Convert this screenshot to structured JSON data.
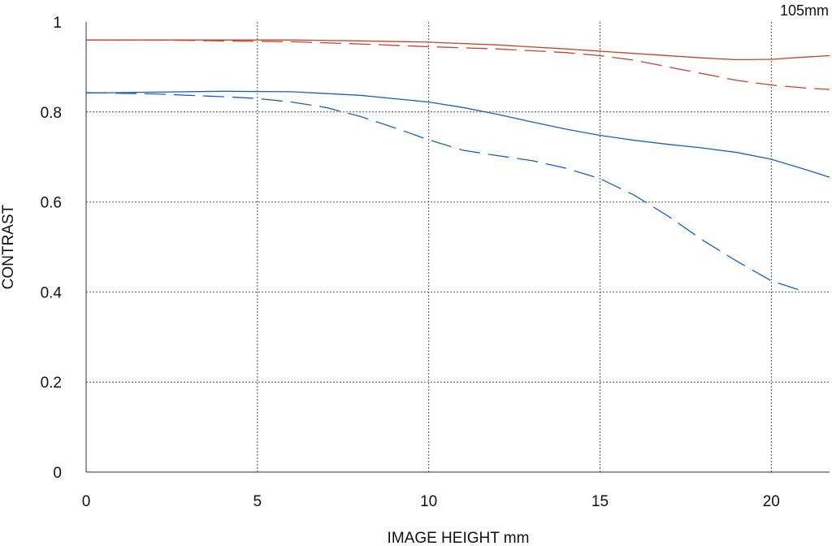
{
  "chart_data": {
    "type": "line",
    "title": "105mm",
    "xlabel": "IMAGE HEIGHT  mm",
    "ylabel": "CONTRAST",
    "xlim": [
      0,
      21.7
    ],
    "ylim": [
      0,
      1
    ],
    "xticks": [
      0,
      5,
      10,
      15,
      20
    ],
    "xtick_labels": [
      "0",
      "5",
      "10",
      "15",
      "20"
    ],
    "yticks": [
      0,
      0.2,
      0.4,
      0.6,
      0.8,
      1
    ],
    "ytick_labels": [
      "0",
      "0.2",
      "0.4",
      "0.6",
      "0.8",
      "1"
    ],
    "grid": true,
    "series": [
      {
        "color": "#c8432a",
        "style": "solid",
        "x": [
          0,
          2,
          4,
          6,
          8,
          10,
          12,
          14,
          16,
          18,
          19,
          20,
          21,
          21.7
        ],
        "y": [
          0.96,
          0.96,
          0.96,
          0.96,
          0.958,
          0.955,
          0.949,
          0.94,
          0.93,
          0.92,
          0.916,
          0.917,
          0.922,
          0.925
        ]
      },
      {
        "color": "#c8432a",
        "style": "dashed",
        "x": [
          0,
          2,
          4,
          6,
          8,
          10,
          12,
          14,
          15,
          16,
          17,
          18,
          19,
          20,
          21,
          21.7
        ],
        "y": [
          0.96,
          0.96,
          0.958,
          0.956,
          0.951,
          0.945,
          0.94,
          0.932,
          0.925,
          0.915,
          0.9,
          0.885,
          0.87,
          0.86,
          0.853,
          0.85
        ]
      },
      {
        "color": "#1a5fc8",
        "style": "solid",
        "x": [
          0,
          2,
          4,
          6,
          8,
          10,
          11,
          12,
          13,
          14,
          15,
          16,
          17,
          18,
          19,
          20,
          21,
          21.7
        ],
        "y": [
          0.842,
          0.844,
          0.846,
          0.845,
          0.837,
          0.822,
          0.81,
          0.795,
          0.778,
          0.762,
          0.748,
          0.737,
          0.728,
          0.72,
          0.71,
          0.695,
          0.672,
          0.655
        ]
      },
      {
        "color": "#1a5fc8",
        "style": "dashed",
        "x": [
          0,
          2,
          4,
          5,
          6,
          7,
          8,
          9,
          10,
          11,
          12,
          13,
          14,
          15,
          16,
          17,
          18,
          19,
          20,
          21
        ],
        "y": [
          0.843,
          0.84,
          0.834,
          0.83,
          0.822,
          0.81,
          0.79,
          0.765,
          0.738,
          0.715,
          0.703,
          0.692,
          0.675,
          0.652,
          0.615,
          0.568,
          0.515,
          0.468,
          0.425,
          0.4
        ]
      }
    ]
  }
}
